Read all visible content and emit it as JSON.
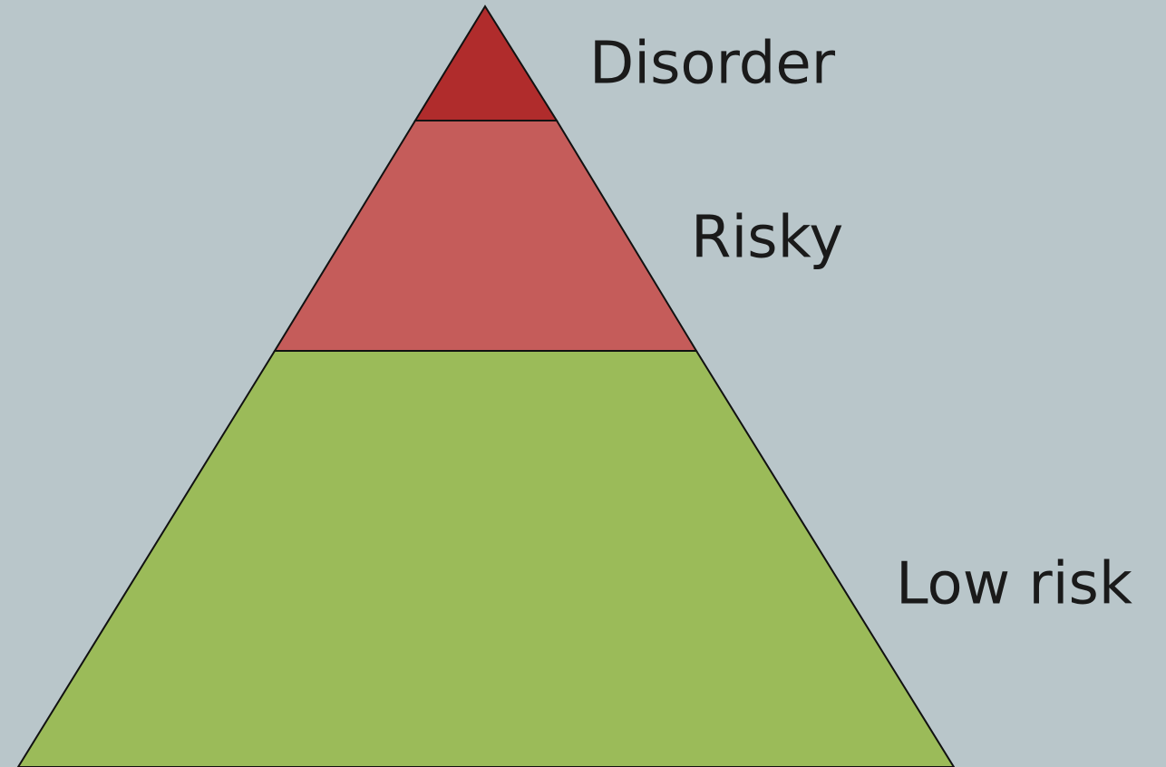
{
  "levels": [
    {
      "label": "Disorder"
    },
    {
      "label": "Risky"
    },
    {
      "label": "Low risk"
    }
  ]
}
